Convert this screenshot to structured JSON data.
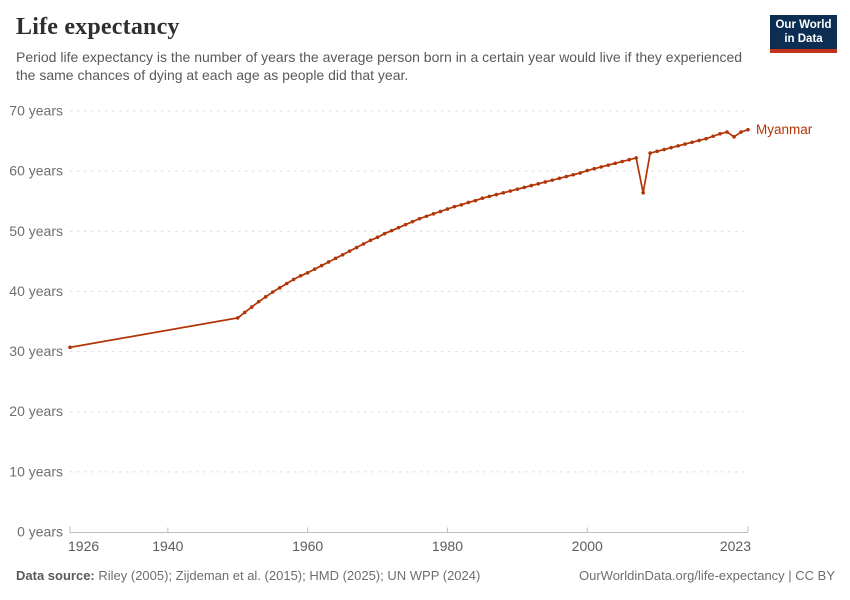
{
  "header": {
    "title": "Life expectancy",
    "subtitle": "Period life expectancy is the number of years the average person born in a certain year would live if they experienced the same chances of dying at each age as people did that year.",
    "logo_line1": "Our World",
    "logo_line2": "in Data"
  },
  "footer": {
    "source_label": "Data source:",
    "sources": " Riley (2005); Zijdeman et al. (2015); HMD (2025); UN WPP (2024)",
    "link": "OurWorldinData.org/life-expectancy | CC BY"
  },
  "chart_data": {
    "type": "line",
    "title": "Life expectancy",
    "xlabel": "",
    "ylabel": "",
    "xlim": [
      1926,
      2023
    ],
    "ylim": [
      0,
      70
    ],
    "x_ticks": [
      1926,
      1940,
      1960,
      1980,
      2000,
      2023
    ],
    "y_ticks": [
      0,
      10,
      20,
      30,
      40,
      50,
      60,
      70
    ],
    "y_tick_suffix": " years",
    "grid": "horizontal-dashed",
    "legend_position": "end-of-line-label",
    "series": [
      {
        "name": "Myanmar",
        "color": "#b13507",
        "points": [
          [
            1926,
            30.7
          ],
          [
            1950,
            35.6
          ],
          [
            1951,
            36.5
          ],
          [
            1952,
            37.4
          ],
          [
            1953,
            38.3
          ],
          [
            1954,
            39.1
          ],
          [
            1955,
            39.9
          ],
          [
            1956,
            40.6
          ],
          [
            1957,
            41.3
          ],
          [
            1958,
            42.0
          ],
          [
            1959,
            42.6
          ],
          [
            1960,
            43.1
          ],
          [
            1961,
            43.7
          ],
          [
            1962,
            44.3
          ],
          [
            1963,
            44.9
          ],
          [
            1964,
            45.5
          ],
          [
            1965,
            46.1
          ],
          [
            1966,
            46.7
          ],
          [
            1967,
            47.3
          ],
          [
            1968,
            47.9
          ],
          [
            1969,
            48.5
          ],
          [
            1970,
            49.0
          ],
          [
            1971,
            49.6
          ],
          [
            1972,
            50.1
          ],
          [
            1973,
            50.6
          ],
          [
            1974,
            51.1
          ],
          [
            1975,
            51.6
          ],
          [
            1976,
            52.1
          ],
          [
            1977,
            52.5
          ],
          [
            1978,
            52.9
          ],
          [
            1979,
            53.3
          ],
          [
            1980,
            53.7
          ],
          [
            1981,
            54.1
          ],
          [
            1982,
            54.4
          ],
          [
            1983,
            54.8
          ],
          [
            1984,
            55.1
          ],
          [
            1985,
            55.5
          ],
          [
            1986,
            55.8
          ],
          [
            1987,
            56.1
          ],
          [
            1988,
            56.4
          ],
          [
            1989,
            56.7
          ],
          [
            1990,
            57.0
          ],
          [
            1991,
            57.3
          ],
          [
            1992,
            57.6
          ],
          [
            1993,
            57.9
          ],
          [
            1994,
            58.2
          ],
          [
            1995,
            58.5
          ],
          [
            1996,
            58.8
          ],
          [
            1997,
            59.1
          ],
          [
            1998,
            59.4
          ],
          [
            1999,
            59.7
          ],
          [
            2000,
            60.1
          ],
          [
            2001,
            60.4
          ],
          [
            2002,
            60.7
          ],
          [
            2003,
            61.0
          ],
          [
            2004,
            61.3
          ],
          [
            2005,
            61.6
          ],
          [
            2006,
            61.9
          ],
          [
            2007,
            62.2
          ],
          [
            2008,
            56.4
          ],
          [
            2009,
            63.0
          ],
          [
            2010,
            63.3
          ],
          [
            2011,
            63.6
          ],
          [
            2012,
            63.9
          ],
          [
            2013,
            64.2
          ],
          [
            2014,
            64.5
          ],
          [
            2015,
            64.8
          ],
          [
            2016,
            65.1
          ],
          [
            2017,
            65.4
          ],
          [
            2018,
            65.8
          ],
          [
            2019,
            66.2
          ],
          [
            2020,
            66.5
          ],
          [
            2021,
            65.7
          ],
          [
            2022,
            66.5
          ],
          [
            2023,
            66.9
          ]
        ]
      }
    ]
  },
  "colors": {
    "line": "#b13507",
    "gridline": "#dcdcdc",
    "axis": "#bdbdbd",
    "y_tick_label": "#6f6f6f",
    "x_tick_label": "#5c5c5c",
    "logo_bg": "#0d2e53",
    "logo_stripe": "#c0341d"
  }
}
